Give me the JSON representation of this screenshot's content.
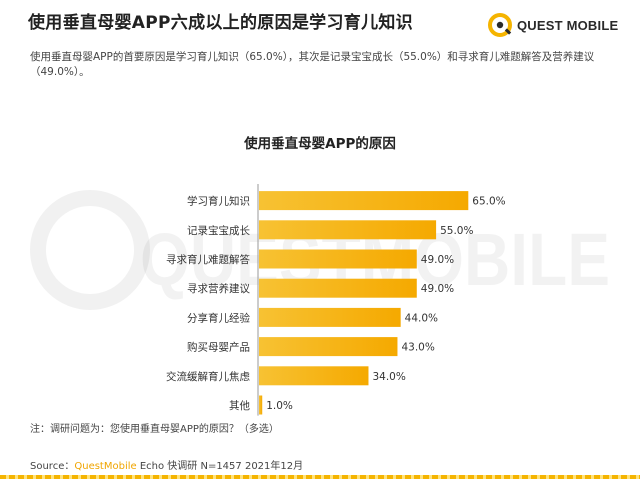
{
  "header": {
    "title": "使用垂直母婴APP六成以上的原因是学习育儿知识",
    "brand": "QUEST MOBILE"
  },
  "summary": "使用垂直母婴APP的首要原因是学习育儿知识（65.0%），其次是记录宝宝成长（55.0%）和寻求育儿难题解答及营养建议（49.0%）。",
  "watermark": "QUESTMOBILE",
  "colors": {
    "bar": "#f7c233",
    "bar_end": "#f5a900",
    "axis": "#999999",
    "brand_accent": "#f0a500"
  },
  "chart_data": {
    "type": "bar",
    "orientation": "horizontal",
    "title": "使用垂直母婴APP的原因",
    "categories": [
      "学习育儿知识",
      "记录宝宝成长",
      "寻求育儿难题解答",
      "寻求营养建议",
      "分享育儿经验",
      "购买母婴产品",
      "交流缓解育儿焦虑",
      "其他"
    ],
    "values": [
      65.0,
      55.0,
      49.0,
      49.0,
      44.0,
      43.0,
      34.0,
      1.0
    ],
    "value_labels": [
      "65.0%",
      "55.0%",
      "49.0%",
      "49.0%",
      "44.0%",
      "43.0%",
      "34.0%",
      "1.0%"
    ],
    "xlim": [
      0,
      100
    ],
    "grid": false,
    "xlabel": "",
    "ylabel": ""
  },
  "footer": {
    "note": "注：调研问题为：您使用垂直母婴APP的原因？（多选）",
    "source_prefix": "Source：",
    "source_brand": "QuestMobile",
    "source_rest": " Echo 快调研 N=1457 2021年12月"
  }
}
